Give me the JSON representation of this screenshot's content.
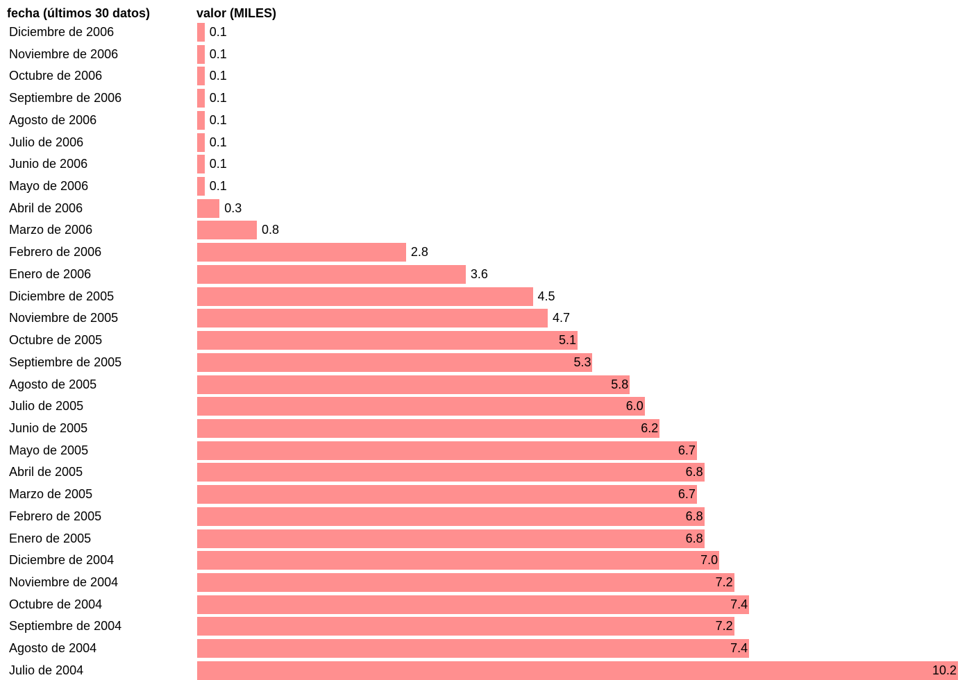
{
  "header": {
    "label_column": "fecha (últimos 30 datos)",
    "value_column": "valor (MILES)"
  },
  "colors": {
    "bar": "#ff8f8f"
  },
  "chart_data": {
    "type": "bar",
    "orientation": "horizontal",
    "xlabel": "valor (MILES)",
    "ylabel": "fecha (últimos 30 datos)",
    "xlim": [
      0,
      10.2
    ],
    "grid": false,
    "categories": [
      "Diciembre de 2006",
      "Noviembre de 2006",
      "Octubre de 2006",
      "Septiembre de 2006",
      "Agosto de 2006",
      "Julio de 2006",
      "Junio de 2006",
      "Mayo de 2006",
      "Abril de 2006",
      "Marzo de 2006",
      "Febrero de 2006",
      "Enero de 2006",
      "Diciembre de 2005",
      "Noviembre de 2005",
      "Octubre de 2005",
      "Septiembre de 2005",
      "Agosto de 2005",
      "Julio de 2005",
      "Junio de 2005",
      "Mayo de 2005",
      "Abril de 2005",
      "Marzo de 2005",
      "Febrero de 2005",
      "Enero de 2005",
      "Diciembre de 2004",
      "Noviembre de 2004",
      "Octubre de 2004",
      "Septiembre de 2004",
      "Agosto de 2004",
      "Julio de 2004"
    ],
    "values": [
      0.1,
      0.1,
      0.1,
      0.1,
      0.1,
      0.1,
      0.1,
      0.1,
      0.3,
      0.8,
      2.8,
      3.6,
      4.5,
      4.7,
      5.1,
      5.3,
      5.8,
      6.0,
      6.2,
      6.7,
      6.8,
      6.7,
      6.8,
      6.8,
      7.0,
      7.2,
      7.4,
      7.2,
      7.4,
      10.2
    ],
    "value_labels": [
      "0.1",
      "0.1",
      "0.1",
      "0.1",
      "0.1",
      "0.1",
      "0.1",
      "0.1",
      "0.3",
      "0.8",
      "2.8",
      "3.6",
      "4.5",
      "4.7",
      "5.1",
      "5.3",
      "5.8",
      "6.0",
      "6.2",
      "6.7",
      "6.8",
      "6.7",
      "6.8",
      "6.8",
      "7.0",
      "7.2",
      "7.4",
      "7.2",
      "7.4",
      "10.2"
    ]
  }
}
